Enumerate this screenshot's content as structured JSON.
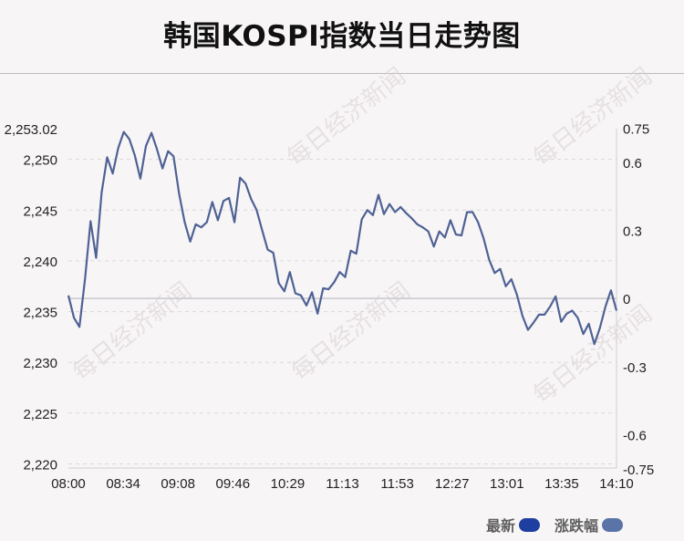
{
  "title": "韩国KOSPI指数当日走势图",
  "watermark_text": "每日经济新闻",
  "colors": {
    "line": "#4e6294",
    "baseline": "#c8c8cc",
    "grid": "#d9d9d9",
    "legend_latest": "#1f3fa0",
    "legend_change": "#5a74a8"
  },
  "legend": {
    "latest": "最新",
    "change": "涨跌幅"
  },
  "chart_data": {
    "type": "line",
    "title": "韩国KOSPI指数当日走势图",
    "x_tick_labels": [
      "08:00",
      "08:34",
      "09:08",
      "09:46",
      "10:29",
      "11:13",
      "11:53",
      "12:27",
      "13:01",
      "13:35",
      "14:10"
    ],
    "y_left_ticks": [
      "2,253.02",
      "2,250",
      "2,245",
      "2,240",
      "2,235",
      "2,230",
      "2,225",
      "2,220"
    ],
    "y_left_tick_values": [
      2253.02,
      2250,
      2245,
      2240,
      2235,
      2230,
      2225,
      2220
    ],
    "y_right_ticks": [
      "0.75",
      "0.6",
      "0.3",
      "0",
      "-0.3",
      "-0.6",
      "-0.75"
    ],
    "y_right_tick_values": [
      0.75,
      0.6,
      0.3,
      0,
      -0.3,
      -0.6,
      -0.75
    ],
    "baseline_value": 2236.3,
    "grid": true,
    "legend_position": "bottom-right",
    "series": [
      {
        "name": "最新",
        "x": [
          "08:00",
          "08:02",
          "08:04",
          "08:08",
          "08:12",
          "08:16",
          "08:18",
          "08:22",
          "08:24",
          "08:28",
          "08:30",
          "08:32",
          "08:36",
          "08:40",
          "08:44",
          "08:48",
          "08:52",
          "08:56",
          "09:00",
          "09:04",
          "09:08",
          "09:10",
          "09:12",
          "09:16",
          "09:20",
          "09:24",
          "09:28",
          "09:32",
          "09:36",
          "09:40",
          "09:44",
          "09:46",
          "09:48",
          "09:52",
          "09:56",
          "10:00",
          "10:04",
          "10:08",
          "10:12",
          "10:16",
          "10:20",
          "10:24",
          "10:29",
          "10:32",
          "10:36",
          "10:40",
          "10:44",
          "10:48",
          "10:52",
          "10:56",
          "11:00",
          "11:04",
          "11:08",
          "11:13",
          "11:16",
          "11:20",
          "11:24",
          "11:28",
          "11:32",
          "11:36",
          "11:40",
          "11:44",
          "11:48",
          "11:53",
          "11:56",
          "12:00",
          "12:04",
          "12:08",
          "12:12",
          "12:16",
          "12:20",
          "12:24",
          "12:27",
          "12:30",
          "12:34",
          "12:38",
          "12:42",
          "12:46",
          "12:50",
          "12:54",
          "12:58",
          "13:01",
          "13:04",
          "13:08",
          "13:12",
          "13:16",
          "13:20",
          "13:24",
          "13:28",
          "13:32",
          "13:35",
          "13:38",
          "13:42",
          "13:46",
          "13:50",
          "13:54",
          "13:58",
          "14:02",
          "14:06",
          "14:10"
        ],
        "values": [
          2236.6,
          2234.4,
          2233.5,
          2238.2,
          2243.9,
          2240.3,
          2246.7,
          2250.2,
          2248.6,
          2251.1,
          2252.7,
          2252.0,
          2250.4,
          2248.1,
          2251.3,
          2252.6,
          2251.0,
          2249.1,
          2250.8,
          2250.3,
          2246.6,
          2243.8,
          2241.9,
          2243.6,
          2243.3,
          2243.8,
          2245.8,
          2244.0,
          2245.9,
          2246.2,
          2243.8,
          2248.2,
          2247.6,
          2246.1,
          2245.0,
          2243.0,
          2241.1,
          2240.8,
          2237.8,
          2237.0,
          2238.9,
          2236.8,
          2236.6,
          2235.6,
          2236.9,
          2234.8,
          2237.3,
          2237.2,
          2237.9,
          2238.9,
          2238.4,
          2241.0,
          2240.7,
          2244.1,
          2245.0,
          2244.5,
          2246.5,
          2244.6,
          2245.6,
          2244.8,
          2245.3,
          2244.7,
          2244.2,
          2243.6,
          2243.3,
          2242.9,
          2241.4,
          2242.9,
          2242.3,
          2244.0,
          2242.6,
          2242.5,
          2244.8,
          2244.8,
          2243.8,
          2242.2,
          2240.1,
          2238.8,
          2239.2,
          2237.5,
          2238.2,
          2236.7,
          2234.6,
          2233.2,
          2233.9,
          2234.7,
          2234.7,
          2235.5,
          2236.5,
          2234.0,
          2234.8,
          2235.1,
          2234.4,
          2232.8,
          2233.8,
          2231.8,
          2233.4,
          2235.5,
          2237.1,
          2235.1
        ]
      }
    ]
  }
}
